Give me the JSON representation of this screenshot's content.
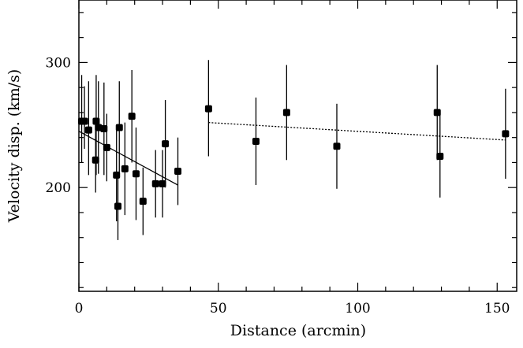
{
  "chart_data": {
    "type": "scatter",
    "xlabel": "Distance (arcmin)",
    "ylabel": "Velocity disp. (km/s)",
    "xlim": [
      0,
      157
    ],
    "ylim": [
      117,
      350
    ],
    "xticks": [
      0,
      50,
      100,
      150
    ],
    "yticks": [
      200,
      300
    ],
    "grid": false,
    "points": [
      {
        "x": 1,
        "y": 253,
        "yerr_low": 33,
        "yerr_high": 37
      },
      {
        "x": 2,
        "y": 253,
        "yerr_low": 22,
        "yerr_high": 28
      },
      {
        "x": 3.5,
        "y": 246,
        "yerr_low": 36,
        "yerr_high": 39
      },
      {
        "x": 6,
        "y": 222,
        "yerr_low": 26,
        "yerr_high": 28
      },
      {
        "x": 6.2,
        "y": 253,
        "yerr_low": 43,
        "yerr_high": 37
      },
      {
        "x": 7,
        "y": 248,
        "yerr_low": 37,
        "yerr_high": 37
      },
      {
        "x": 9,
        "y": 247,
        "yerr_low": 37,
        "yerr_high": 37
      },
      {
        "x": 10,
        "y": 232,
        "yerr_low": 27,
        "yerr_high": 27
      },
      {
        "x": 13.5,
        "y": 210,
        "yerr_low": 37,
        "yerr_high": 37
      },
      {
        "x": 14,
        "y": 185,
        "yerr_low": 27,
        "yerr_high": 27
      },
      {
        "x": 14.5,
        "y": 248,
        "yerr_low": 37,
        "yerr_high": 37
      },
      {
        "x": 16.5,
        "y": 215,
        "yerr_low": 37,
        "yerr_high": 37
      },
      {
        "x": 19,
        "y": 257,
        "yerr_low": 37,
        "yerr_high": 37
      },
      {
        "x": 20.5,
        "y": 211,
        "yerr_low": 37,
        "yerr_high": 37
      },
      {
        "x": 23,
        "y": 189,
        "yerr_low": 27,
        "yerr_high": 27
      },
      {
        "x": 27.5,
        "y": 203,
        "yerr_low": 27,
        "yerr_high": 27
      },
      {
        "x": 30,
        "y": 203,
        "yerr_low": 27,
        "yerr_high": 27
      },
      {
        "x": 31,
        "y": 235,
        "yerr_low": 35,
        "yerr_high": 35
      },
      {
        "x": 35.5,
        "y": 213,
        "yerr_low": 27,
        "yerr_high": 27
      },
      {
        "x": 46.5,
        "y": 263,
        "yerr_low": 38,
        "yerr_high": 39
      },
      {
        "x": 63.5,
        "y": 237,
        "yerr_low": 35,
        "yerr_high": 35
      },
      {
        "x": 74.5,
        "y": 260,
        "yerr_low": 38,
        "yerr_high": 38
      },
      {
        "x": 92.5,
        "y": 233,
        "yerr_low": 34,
        "yerr_high": 34
      },
      {
        "x": 128.5,
        "y": 260,
        "yerr_low": 38,
        "yerr_high": 38
      },
      {
        "x": 129.5,
        "y": 225,
        "yerr_low": 33,
        "yerr_high": 33
      },
      {
        "x": 153,
        "y": 243,
        "yerr_low": 36,
        "yerr_high": 36
      }
    ],
    "fits": [
      {
        "style": "solid",
        "x": [
          0,
          35.5
        ],
        "y": [
          245,
          202
        ]
      },
      {
        "style": "dotted",
        "x": [
          46.5,
          153
        ],
        "y": [
          252,
          238
        ]
      }
    ]
  }
}
